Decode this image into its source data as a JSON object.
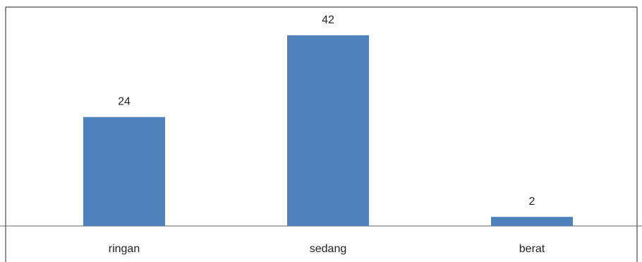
{
  "chart_data": {
    "type": "bar",
    "title": "",
    "categories": [
      "ringan",
      "sedang",
      "berat"
    ],
    "values": [
      24,
      42,
      2
    ],
    "data_labels": [
      "24",
      "42",
      "2"
    ],
    "xlabel": "",
    "ylabel": "",
    "ylim": [
      0,
      42
    ],
    "grid": false,
    "legend": "none",
    "colors": {
      "bar": "#4f81bd",
      "axis": "#7f7f7f",
      "frame": "#222222"
    }
  }
}
